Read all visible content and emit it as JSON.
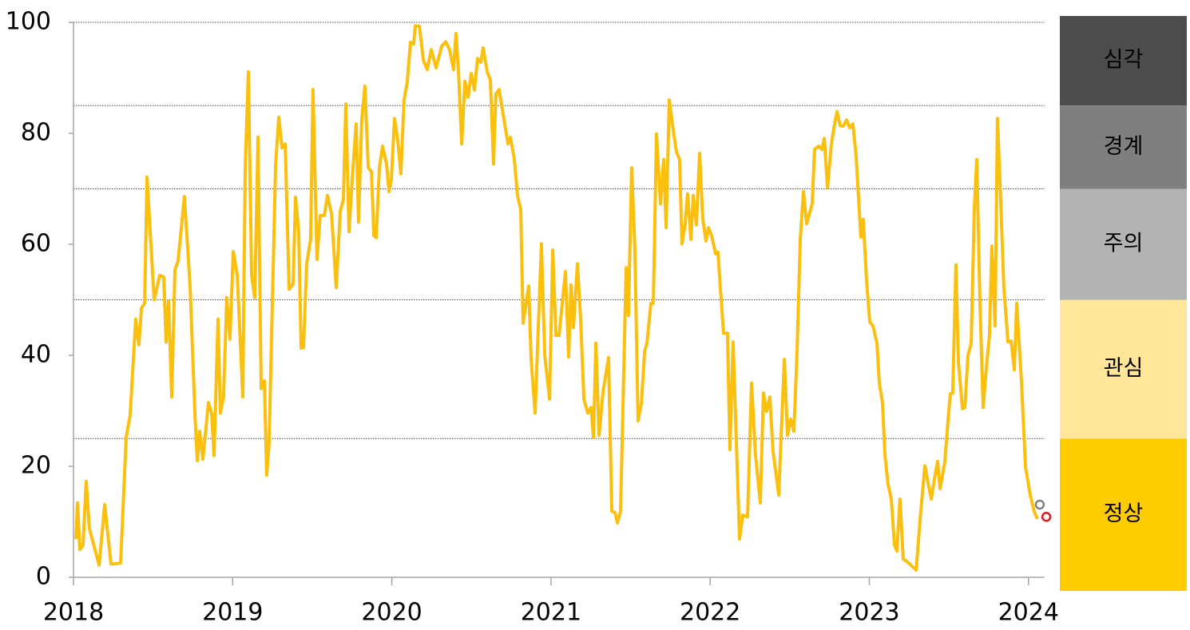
{
  "chart_data": {
    "type": "line",
    "color": "#fbbf0e",
    "x": [
      2018.015,
      2018.025,
      2018.04,
      2018.06,
      2018.08,
      2018.1,
      2018.161,
      2018.196,
      2018.236,
      2018.256,
      2018.296,
      2018.331,
      2018.356,
      2018.391,
      2018.411,
      2018.427,
      2018.447,
      2018.462,
      2018.507,
      2018.542,
      2018.567,
      2018.582,
      2018.597,
      2018.617,
      2018.637,
      2018.657,
      2018.697,
      2018.733,
      2018.763,
      2018.778,
      2018.793,
      2018.813,
      2018.848,
      2018.868,
      2018.883,
      2018.908,
      2018.923,
      2018.943,
      2018.963,
      2018.983,
      2019.004,
      2019.029,
      2019.064,
      2019.079,
      2019.099,
      2019.119,
      2019.139,
      2019.159,
      2019.179,
      2019.199,
      2019.214,
      2019.229,
      2019.27,
      2019.29,
      2019.31,
      2019.33,
      2019.355,
      2019.38,
      2019.395,
      2019.415,
      2019.43,
      2019.445,
      2019.465,
      2019.49,
      2019.505,
      2019.53,
      2019.55,
      2019.576,
      2019.596,
      2019.621,
      2019.651,
      2019.676,
      2019.696,
      2019.711,
      2019.731,
      2019.751,
      2019.776,
      2019.791,
      2019.811,
      2019.831,
      2019.852,
      2019.872,
      2019.887,
      2019.902,
      2019.922,
      2019.942,
      2019.967,
      2019.982,
      2019.997,
      2020.017,
      2020.037,
      2020.057,
      2020.077,
      2020.097,
      2020.117,
      2020.137,
      2020.148,
      2020.173,
      2020.198,
      2020.223,
      2020.248,
      2020.278,
      2020.313,
      2020.338,
      2020.363,
      2020.388,
      2020.403,
      2020.419,
      2020.439,
      2020.459,
      2020.479,
      2020.499,
      2020.519,
      2020.539,
      2020.559,
      2020.574,
      2020.599,
      2020.619,
      2020.639,
      2020.654,
      2020.674,
      2020.705,
      2020.73,
      2020.745,
      2020.77,
      2020.79,
      2020.81,
      2020.825,
      2020.86,
      2020.875,
      2020.9,
      2020.94,
      2020.961,
      2020.991,
      2021.011,
      2021.031,
      2021.051,
      2021.091,
      2021.111,
      2021.126,
      2021.141,
      2021.166,
      2021.186,
      2021.207,
      2021.232,
      2021.252,
      2021.267,
      2021.282,
      2021.302,
      2021.327,
      2021.362,
      2021.382,
      2021.402,
      2021.417,
      2021.437,
      2021.472,
      2021.487,
      2021.507,
      2021.527,
      2021.547,
      2021.568,
      2021.588,
      2021.603,
      2021.628,
      2021.643,
      2021.663,
      2021.688,
      2021.708,
      2021.723,
      2021.743,
      2021.768,
      2021.788,
      2021.808,
      2021.823,
      2021.843,
      2021.858,
      2021.879,
      2021.894,
      2021.914,
      2021.934,
      2021.954,
      2021.974,
      2021.989,
      2022.009,
      2022.034,
      2022.049,
      2022.084,
      2022.109,
      2022.124,
      2022.144,
      2022.185,
      2022.205,
      2022.235,
      2022.26,
      2022.285,
      2022.315,
      2022.335,
      2022.355,
      2022.375,
      2022.395,
      2022.431,
      2022.446,
      2022.466,
      2022.486,
      2022.506,
      2022.526,
      2022.546,
      2022.566,
      2022.586,
      2022.606,
      2022.641,
      2022.656,
      2022.682,
      2022.702,
      2022.717,
      2022.737,
      2022.762,
      2022.782,
      2022.797,
      2022.817,
      2022.837,
      2022.857,
      2022.877,
      2022.897,
      2022.917,
      2022.947,
      2022.962,
      2022.982,
      2023.003,
      2023.023,
      2023.048,
      2023.063,
      2023.083,
      2023.098,
      2023.118,
      2023.138,
      2023.158,
      2023.173,
      2023.193,
      2023.213,
      2023.233,
      2023.258,
      2023.294,
      2023.319,
      2023.349,
      2023.369,
      2023.389,
      2023.409,
      2023.429,
      2023.444,
      2023.474,
      2023.494,
      2023.509,
      2023.524,
      2023.544,
      2023.56,
      2023.585,
      2023.6,
      2023.62,
      2023.64,
      2023.66,
      2023.675,
      2023.695,
      2023.715,
      2023.735,
      2023.755,
      2023.77,
      2023.79,
      2023.805,
      2023.825,
      2023.845,
      2023.871,
      2023.891,
      2023.911,
      2023.926,
      2023.956,
      2023.981,
      2024.011,
      2024.036,
      2024.056
    ],
    "values": [
      6.9,
      13.4,
      5,
      5.8,
      17.3,
      8.8,
      2.2,
      13.1,
      2.4,
      2.4,
      2.6,
      25.2,
      29.2,
      46.5,
      41.9,
      48.5,
      49.4,
      72.1,
      50,
      54.4,
      54.1,
      42.4,
      49.8,
      32.5,
      55.4,
      57,
      68.6,
      52.2,
      29.2,
      21,
      26.3,
      21.3,
      31.5,
      29.6,
      21.9,
      46.5,
      29.6,
      32.5,
      50.4,
      42.9,
      58.7,
      54.4,
      32.5,
      73.5,
      91.1,
      54.4,
      50.4,
      79.3,
      34,
      35.4,
      18.4,
      24.2,
      74.5,
      82.9,
      77.4,
      78.1,
      51.9,
      52.9,
      68.5,
      62.3,
      41.3,
      41.4,
      56.5,
      60.9,
      87.9,
      57.3,
      65.2,
      65.2,
      68.8,
      65.5,
      52.2,
      66,
      68.1,
      85.3,
      62.3,
      71.7,
      81.7,
      64,
      82.4,
      88.5,
      73.8,
      73.1,
      61.6,
      61.2,
      73.8,
      77.7,
      74.5,
      69.5,
      71.7,
      82.7,
      78.8,
      72.7,
      86,
      89.2,
      96.4,
      96.1,
      99.4,
      99.3,
      93.2,
      91.5,
      95.1,
      91.8,
      95.7,
      96.5,
      95.1,
      91.5,
      98,
      91.1,
      78.1,
      89.4,
      86.5,
      90.8,
      87.8,
      93.5,
      92.8,
      95.4,
      91.1,
      89.6,
      74.5,
      87.1,
      87.9,
      82.4,
      78.1,
      79.3,
      75.3,
      68.8,
      66.3,
      45.8,
      52.5,
      39.3,
      29.6,
      60.1,
      40,
      32.1,
      59,
      43.6,
      43.6,
      55.1,
      39.7,
      52.7,
      45,
      56.5,
      46.5,
      32.1,
      29.6,
      30.6,
      25.2,
      42.2,
      25.6,
      33.5,
      39.6,
      11.9,
      11.7,
      9.8,
      11.9,
      55.8,
      47.2,
      73.8,
      59.4,
      28.2,
      31.4,
      40.7,
      42.2,
      49.4,
      49.4,
      79.9,
      67.3,
      75.3,
      63,
      86,
      80.7,
      76.7,
      75.3,
      60.1,
      63.7,
      69.1,
      60.9,
      68.8,
      63.5,
      76.4,
      64.5,
      60.6,
      63,
      61.6,
      58.3,
      58.6,
      44,
      44,
      23,
      42.4,
      6.9,
      11.2,
      10.9,
      35,
      22,
      13.4,
      33.2,
      29.9,
      32.5,
      22.7,
      14.8,
      25.6,
      39.3,
      25.6,
      28.5,
      26.3,
      40.7,
      60.9,
      69.5,
      63.7,
      67.3,
      77.1,
      77.7,
      77.1,
      79.1,
      70.2,
      78.1,
      81.7,
      83.9,
      81.4,
      81.3,
      82.4,
      81,
      81.7,
      76,
      61.3,
      64.5,
      53.7,
      46,
      45.3,
      42.2,
      35,
      31.4,
      22,
      16.7,
      14.1,
      5.8,
      4.7,
      14.1,
      3.3,
      2.9,
      2.3,
      1.3,
      10.5,
      20.1,
      17,
      14.1,
      17.7,
      20.9,
      16,
      20.6,
      28.1,
      33.1,
      33.2,
      56.3,
      38.6,
      30.4,
      30.6,
      40,
      42.2,
      66.6,
      75.3,
      49.4,
      30.6,
      37.8,
      43.6,
      59.7,
      45.3,
      82.7,
      68.3,
      52.2,
      42.4,
      42.6,
      37.4,
      49.4,
      35.3,
      19.9,
      14.8,
      11.9,
      10.5
    ],
    "markers": [
      {
        "x": 2024.071,
        "value": 13.1,
        "color": "#808080"
      },
      {
        "x": 2024.112,
        "value": 10.9,
        "color": "#e8141b"
      }
    ],
    "xlim": [
      2018,
      2024.1
    ],
    "xticks": [
      2018,
      2019,
      2020,
      2021,
      2022,
      2023,
      2024
    ],
    "ylim": [
      0,
      100
    ],
    "yticks": [
      0,
      20,
      40,
      60,
      80,
      100
    ],
    "bands": [
      {
        "label": "심각",
        "from": 85,
        "to": 100,
        "color": "#4d4d4d",
        "text_color": "#ffffff"
      },
      {
        "label": "경계",
        "from": 70,
        "to": 85,
        "color": "#7f7f7f",
        "text_color": "#ffffff"
      },
      {
        "label": "주의",
        "from": 50,
        "to": 70,
        "color": "#b3b3b3",
        "text_color": "#000000"
      },
      {
        "label": "관심",
        "from": 25,
        "to": 50,
        "color": "#ffe699",
        "text_color": "#000000"
      },
      {
        "label": "정상",
        "from": 0,
        "to": 25,
        "color": "#ffcc00",
        "text_color": "#000000"
      }
    ]
  }
}
